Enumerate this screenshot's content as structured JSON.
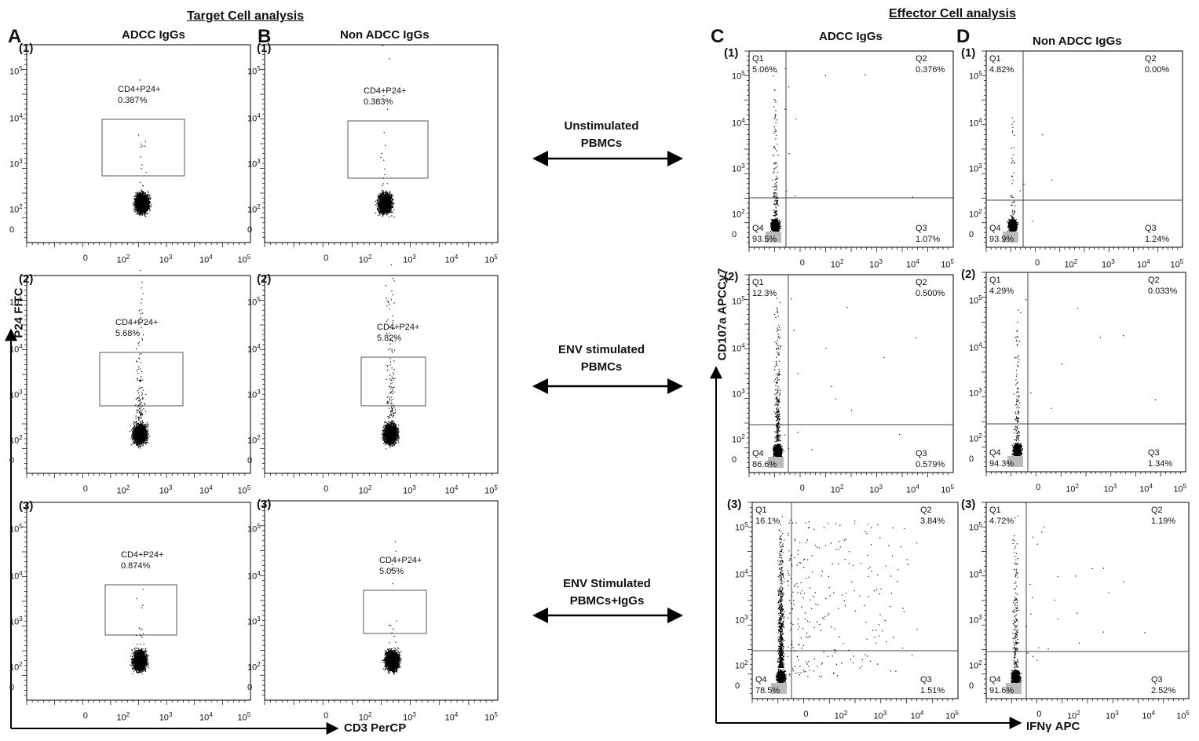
{
  "titles": {
    "target": "Target Cell analysis",
    "effector": "Effector Cell analysis"
  },
  "panels": {
    "a": "A",
    "b": "B",
    "c": "C",
    "d": "D"
  },
  "columns": {
    "a": "ADCC IgGs",
    "b": "Non ADCC IgGs",
    "c": "ADCC IgGs",
    "d": "Non ADCC IgGs"
  },
  "rows": [
    "(1)",
    "(2)",
    "(3)"
  ],
  "axes": {
    "p24": "P24 FITC",
    "cd3": "CD3 PerCP",
    "cd107": "CD107a APCCy7",
    "ifn": "IFNγ APC"
  },
  "ticks_log": [
    "0",
    "10",
    "10",
    "10",
    "10"
  ],
  "ticks_exp": [
    "2",
    "3",
    "4",
    "5"
  ],
  "conditions": [
    {
      "line1": "Unstimulated",
      "line2": "PBMCs"
    },
    {
      "line1": "ENV stimulated",
      "line2": "PBMCs"
    },
    {
      "line1": "ENV Stimulated",
      "line2": "PBMCs+IgGs"
    }
  ],
  "gate_label": "CD4+P24+",
  "target": {
    "a": [
      "0.387%",
      "5.68%",
      "0.874%"
    ],
    "b": [
      "0.383%",
      "5.82%",
      "5.05%"
    ]
  },
  "quad_names": [
    "Q1",
    "Q2",
    "Q3",
    "Q4"
  ],
  "effector": {
    "c": [
      {
        "q1": "5.06%",
        "q2": "0.376%",
        "q3": "1.07%",
        "q4": "93.5%"
      },
      {
        "q1": "12.3%",
        "q2": "0.500%",
        "q3": "0.579%",
        "q4": "86.6%"
      },
      {
        "q1": "16.1%",
        "q2": "3.84%",
        "q3": "1.51%",
        "q4": "78.5%"
      }
    ],
    "d": [
      {
        "q1": "4.82%",
        "q2": "0.00%",
        "q3": "1.24%",
        "q4": "93.9%"
      },
      {
        "q1": "4.29%",
        "q2": "0.033%",
        "q3": "1.34%",
        "q4": "94.3%"
      },
      {
        "q1": "4.72%",
        "q2": "1.19%",
        "q3": "2.52%",
        "q4": "91.6%"
      }
    ]
  }
}
